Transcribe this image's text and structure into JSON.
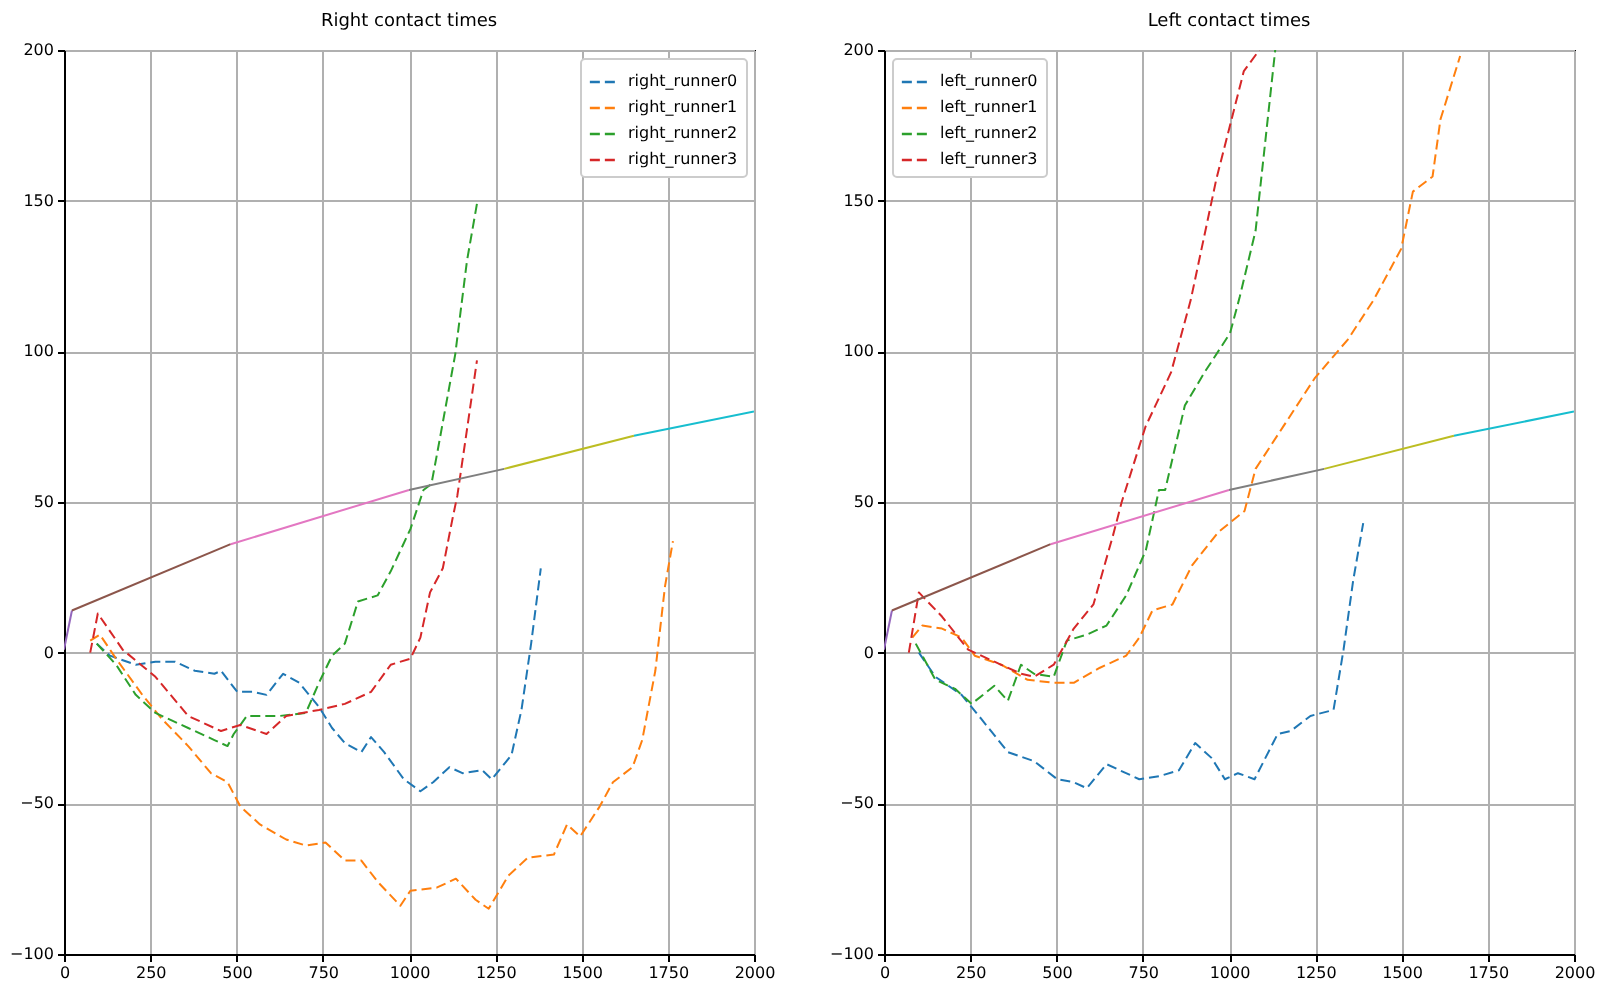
{
  "chart_data": [
    {
      "type": "line",
      "title": "Right contact times",
      "xlim": [
        0,
        2000
      ],
      "ylim": [
        -100,
        200
      ],
      "xticks": [
        0,
        250,
        500,
        750,
        1000,
        1250,
        1500,
        1750,
        2000
      ],
      "yticks": [
        -100,
        -50,
        0,
        50,
        100,
        150,
        200
      ],
      "grid": true,
      "legend": "top right",
      "series": [
        {
          "name": "right_runner0",
          "color": "#1f77b4",
          "line_style": "dashed",
          "x": [
            95,
            133,
            208,
            265,
            322,
            379,
            436,
            455,
            502,
            549,
            587,
            635,
            682,
            739,
            777,
            814,
            862,
            890,
            928,
            985,
            1033,
            1070,
            1117,
            1155,
            1212,
            1240,
            1297,
            1326,
            1354,
            1382
          ],
          "values": [
            3,
            -1,
            -4,
            -3,
            -3,
            -6,
            -7,
            -6,
            -13,
            -13,
            -14,
            -7,
            -10,
            -18,
            -25,
            -30,
            -33,
            -28,
            -33,
            -42,
            -46,
            -43,
            -38,
            -40,
            -39,
            -42,
            -34,
            -19,
            3,
            28
          ]
        },
        {
          "name": "right_runner1",
          "color": "#ff7f0e",
          "line_style": "dashed",
          "x": [
            76,
            104,
            151,
            227,
            284,
            360,
            426,
            474,
            511,
            568,
            644,
            701,
            758,
            814,
            862,
            909,
            975,
            1004,
            1080,
            1136,
            1193,
            1231,
            1288,
            1345,
            1420,
            1458,
            1496,
            1553,
            1591,
            1648,
            1676,
            1714,
            1742,
            1765
          ],
          "values": [
            4,
            6,
            -2,
            -14,
            -22,
            -31,
            -40,
            -43,
            -51,
            -57,
            -62,
            -64,
            -63,
            -69,
            -69,
            -76,
            -84,
            -79,
            -78,
            -75,
            -82,
            -85,
            -74,
            -68,
            -67,
            -57,
            -61,
            -51,
            -43,
            -38,
            -29,
            -6,
            22,
            37
          ]
        },
        {
          "name": "right_runner2",
          "color": "#2ca02c",
          "line_style": "dashed",
          "x": [
            95,
            151,
            208,
            265,
            360,
            436,
            474,
            492,
            530,
            625,
            701,
            739,
            777,
            814,
            852,
            909,
            947,
            1004,
            1042,
            1065,
            1083,
            1134,
            1168,
            1197
          ],
          "values": [
            3,
            -4,
            -14,
            -20,
            -25,
            -29,
            -31,
            -27,
            -21,
            -21,
            -20,
            -10,
            -1,
            3,
            17,
            19,
            27,
            41,
            54,
            56,
            67,
            99,
            130,
            149
          ]
        },
        {
          "name": "right_runner3",
          "color": "#d62728",
          "line_style": "dashed",
          "x": [
            76,
            98,
            170,
            265,
            360,
            455,
            511,
            587,
            644,
            739,
            814,
            890,
            947,
            1004,
            1033,
            1061,
            1098,
            1127,
            1140,
            1168,
            1197
          ],
          "values": [
            0,
            13,
            1,
            -8,
            -21,
            -26,
            -24,
            -27,
            -21,
            -19,
            -17,
            -13,
            -4,
            -2,
            5,
            20,
            28,
            45,
            52,
            74,
            97
          ]
        },
        {
          "color": "#9467bd",
          "x": [
            0,
            23
          ],
          "values": [
            1,
            14
          ]
        },
        {
          "color": "#8c564b",
          "x": [
            23,
            483
          ],
          "values": [
            14,
            36
          ]
        },
        {
          "color": "#e377c2",
          "x": [
            483,
            1000
          ],
          "values": [
            36,
            54
          ]
        },
        {
          "color": "#7f7f7f",
          "x": [
            1000,
            1276
          ],
          "values": [
            54,
            61
          ]
        },
        {
          "color": "#bcbd22",
          "x": [
            1276,
            1652
          ],
          "values": [
            61,
            72
          ]
        },
        {
          "color": "#17becf",
          "x": [
            1652,
            2000
          ],
          "values": [
            72,
            80
          ]
        }
      ]
    },
    {
      "type": "line",
      "title": "Left contact times",
      "xlim": [
        0,
        2000
      ],
      "ylim": [
        -100,
        200
      ],
      "xticks": [
        0,
        250,
        500,
        750,
        1000,
        1250,
        1500,
        1750,
        2000
      ],
      "yticks": [
        -100,
        -50,
        0,
        50,
        100,
        150,
        200
      ],
      "grid": true,
      "legend": "top left",
      "series": [
        {
          "name": "left_runner0",
          "color": "#1f77b4",
          "line_style": "dashed",
          "x": [
            101,
            149,
            225,
            282,
            359,
            435,
            502,
            550,
            588,
            645,
            740,
            798,
            855,
            902,
            950,
            988,
            1026,
            1074,
            1141,
            1179,
            1236,
            1303,
            1332,
            1360,
            1389
          ],
          "values": [
            0,
            -8,
            -14,
            -22,
            -33,
            -36,
            -42,
            -43,
            -45,
            -37,
            -42,
            -41,
            -39,
            -30,
            -35,
            -42,
            -40,
            -42,
            -27,
            -26,
            -21,
            -19,
            1,
            24,
            43
          ]
        },
        {
          "name": "left_runner1",
          "color": "#ff7f0e",
          "line_style": "dashed",
          "x": [
            82,
            111,
            168,
            225,
            263,
            340,
            416,
            492,
            550,
            626,
            702,
            740,
            778,
            836,
            893,
            969,
            1045,
            1077,
            1157,
            1248,
            1345,
            1419,
            1499,
            1533,
            1590,
            1613,
            1670
          ],
          "values": [
            5,
            9,
            8,
            5,
            -1,
            -4,
            -9,
            -10,
            -10,
            -5,
            -1,
            5,
            14,
            16,
            29,
            40,
            47,
            61,
            75,
            91,
            104,
            117,
            134,
            153,
            158,
            177,
            198
          ]
        },
        {
          "name": "left_runner2",
          "color": "#2ca02c",
          "line_style": "dashed",
          "x": [
            92,
            149,
            206,
            254,
            320,
            359,
            397,
            435,
            492,
            530,
            588,
            645,
            702,
            759,
            797,
            815,
            872,
            929,
            1003,
            1031,
            1077,
            1134
          ],
          "values": [
            3,
            -9,
            -12,
            -17,
            -11,
            -16,
            -4,
            -7,
            -8,
            4,
            6,
            9,
            19,
            34,
            54,
            54,
            82,
            93,
            106,
            118,
            140,
            200
          ]
        },
        {
          "name": "left_runner3",
          "color": "#d62728",
          "line_style": "dashed",
          "x": [
            72,
            101,
            168,
            244,
            320,
            397,
            435,
            492,
            550,
            607,
            664,
            689,
            758,
            832,
            889,
            963,
            1043,
            1088
          ],
          "values": [
            0,
            20,
            12,
            1,
            -3,
            -7,
            -8,
            -4,
            8,
            16,
            39,
            50,
            75,
            93,
            117,
            157,
            193,
            200
          ]
        },
        {
          "color": "#9467bd",
          "x": [
            0,
            23
          ],
          "values": [
            1,
            14
          ]
        },
        {
          "color": "#8c564b",
          "x": [
            23,
            483
          ],
          "values": [
            14,
            36
          ]
        },
        {
          "color": "#e377c2",
          "x": [
            483,
            1000
          ],
          "values": [
            36,
            54
          ]
        },
        {
          "color": "#7f7f7f",
          "x": [
            1000,
            1276
          ],
          "values": [
            54,
            61
          ]
        },
        {
          "color": "#bcbd22",
          "x": [
            1276,
            1652
          ],
          "values": [
            61,
            72
          ]
        },
        {
          "color": "#17becf",
          "x": [
            1652,
            2000
          ],
          "values": [
            72,
            80
          ]
        }
      ]
    }
  ]
}
